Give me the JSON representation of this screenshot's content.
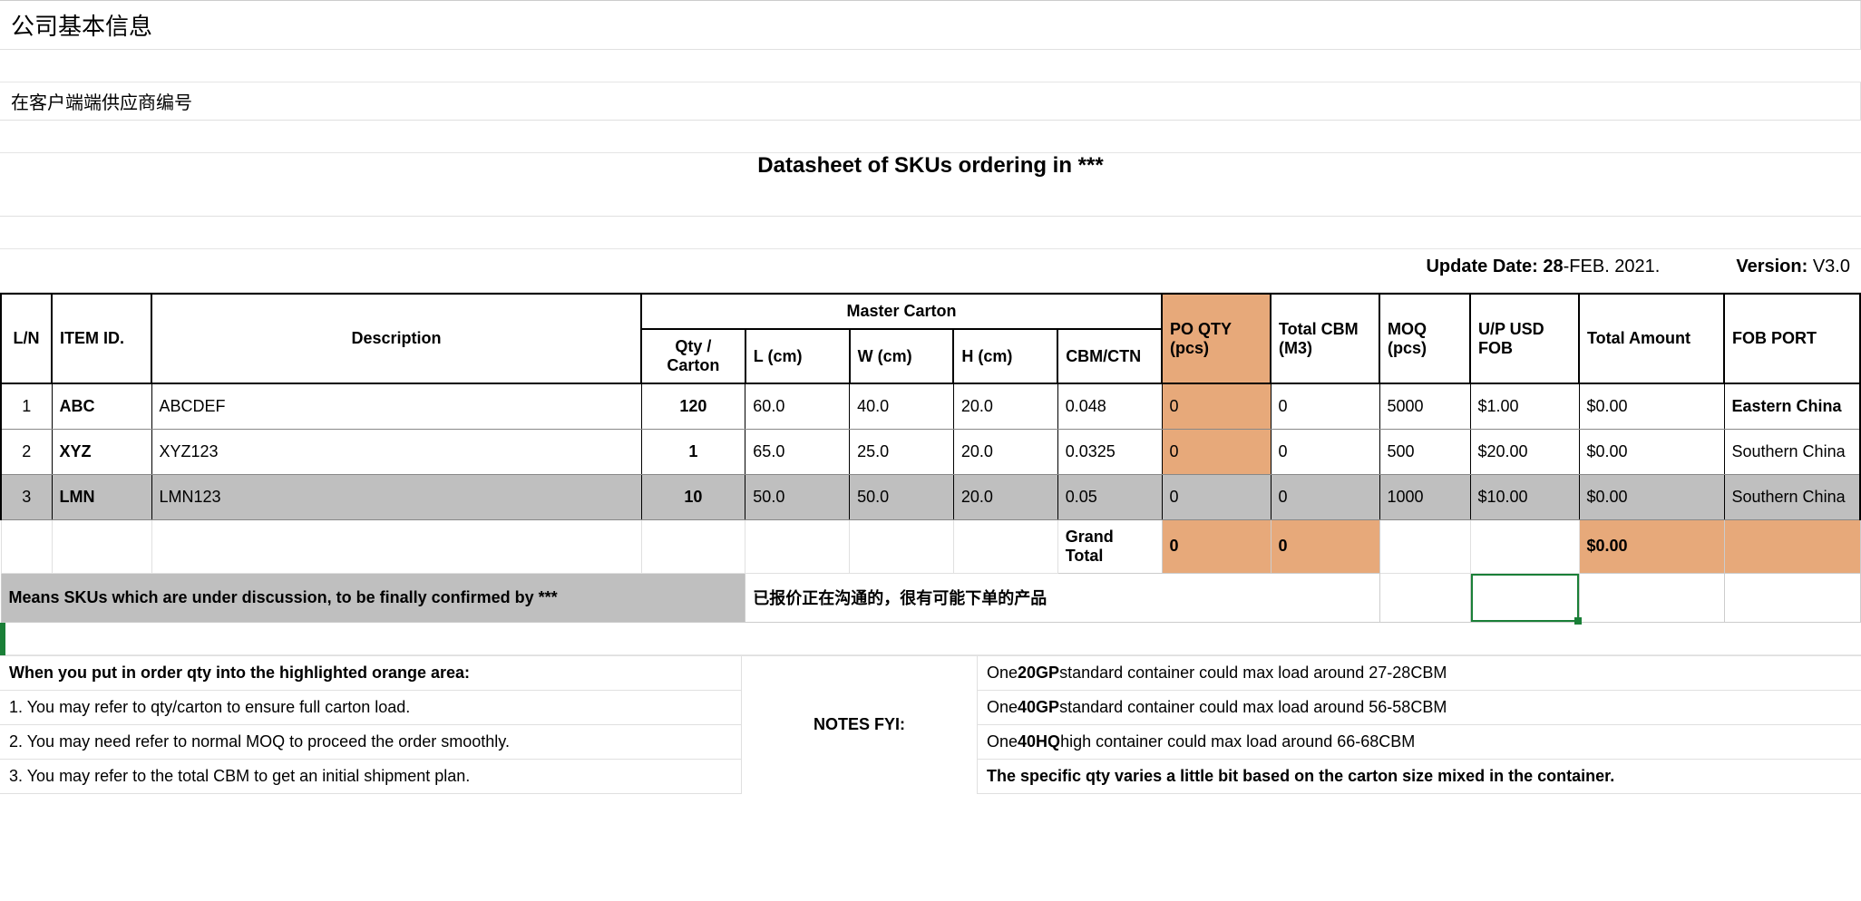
{
  "header": {
    "company_info": "公司基本信息",
    "supplier_code": "在客户端端供应商编号",
    "title": "Datasheet of SKUs ordering in ***",
    "update_label": "Update Date: ",
    "update_date_bold": "28",
    "update_date_rest": "-FEB. 2021.",
    "version_label": "Version: ",
    "version_value": "V3.0"
  },
  "colors": {
    "highlight_orange": "#e7a97a",
    "row_grey": "#bfbfbf",
    "selection_green": "#1a7f37"
  },
  "columns": {
    "ln": "L/N",
    "item_id": "ITEM ID.",
    "description": "Description",
    "master_carton": "Master Carton",
    "qty_carton": "Qty / Carton",
    "l_cm": "L (cm)",
    "w_cm": "W (cm)",
    "h_cm": "H (cm)",
    "cbm_ctn": "CBM/CTN",
    "po_qty": "PO QTY (pcs)",
    "total_cbm": "Total CBM (M3)",
    "moq": "MOQ (pcs)",
    "up_usd": "U/P USD FOB",
    "total_amount": "Total Amount",
    "fob_port": "FOB PORT"
  },
  "rows": [
    {
      "ln": "1",
      "item_id": "ABC",
      "description": "ABCDEF",
      "qty_carton": "120",
      "l": "60.0",
      "w": "40.0",
      "h": "20.0",
      "cbm_ctn": "0.048",
      "po_qty": "0",
      "total_cbm": "0",
      "moq": "5000",
      "up": "$1.00",
      "amount": "$0.00",
      "fob": "Eastern China",
      "fob_bold": true,
      "grey": false
    },
    {
      "ln": "2",
      "item_id": "XYZ",
      "description": "XYZ123",
      "qty_carton": "1",
      "l": "65.0",
      "w": "25.0",
      "h": "20.0",
      "cbm_ctn": "0.0325",
      "po_qty": "0",
      "total_cbm": "0",
      "moq": "500",
      "up": "$20.00",
      "amount": "$0.00",
      "fob": "Southern China",
      "fob_bold": false,
      "grey": false
    },
    {
      "ln": "3",
      "item_id": "LMN",
      "description": "LMN123",
      "qty_carton": "10",
      "l": "50.0",
      "w": "50.0",
      "h": "20.0",
      "cbm_ctn": "0.05",
      "po_qty": "0",
      "total_cbm": "0",
      "moq": "1000",
      "up": "$10.00",
      "amount": "$0.00",
      "fob": "Southern China",
      "fob_bold": false,
      "grey": true
    }
  ],
  "totals": {
    "label": "Grand Total",
    "po_qty": "0",
    "total_cbm": "0",
    "amount": "$0.00"
  },
  "legend": {
    "grey_text": "Means SKUs which are under discussion,  to be finally confirmed by ***",
    "cn_text": "已报价正在沟通的，很有可能下单的产品"
  },
  "notes": {
    "left_heading": "When you put in order qty into the highlighted orange area:",
    "left_items": [
      "1. You may refer to qty/carton to ensure full carton load.",
      "2. You may need refer to normal MOQ to proceed the order smoothly.",
      "3. You may refer to the total CBM to get an initial shipment plan."
    ],
    "mid_label": "NOTES FYI:",
    "right_items": [
      {
        "pre": "One ",
        "bold": "20GP",
        "post": " standard container could max load around 27-28CBM"
      },
      {
        "pre": "One ",
        "bold": "40GP",
        "post": " standard container could max load around 56-58CBM"
      },
      {
        "pre": "One ",
        "bold": "40HQ",
        "post": " high container could max load around 66-68CBM"
      }
    ],
    "right_final": "The specific qty varies a little bit based on the carton size mixed in the container."
  }
}
